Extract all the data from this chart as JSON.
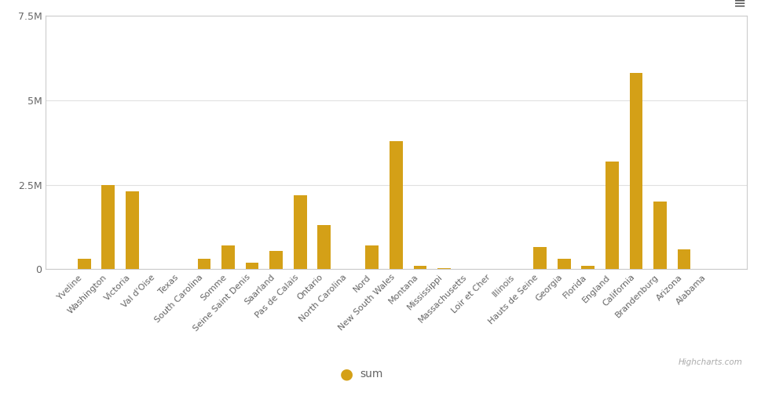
{
  "categories": [
    "Yveline",
    "Washington",
    "Victoria",
    "Val d’Oise",
    "Texas",
    "South Carolina",
    "Somme",
    "Seine Saint Denis",
    "Saarland",
    "Pas de Calais",
    "Ontario",
    "North Carolina",
    "Nord",
    "New South Wales",
    "Montana",
    "Mississippi",
    "Massachusetts",
    "Loir et Cher",
    "Illinois",
    "Hauts de Seine",
    "Georgia",
    "Florida",
    "England",
    "California",
    "Brandenburg",
    "Arizona",
    "Alabama"
  ],
  "values": [
    300000,
    2500000,
    2300000,
    0,
    0,
    300000,
    700000,
    200000,
    550000,
    2200000,
    1300000,
    0,
    700000,
    3800000,
    100000,
    30000,
    0,
    0,
    0,
    650000,
    300000,
    100000,
    3200000,
    5800000,
    2000000,
    600000,
    0
  ],
  "bar_color": "#d4a017",
  "legend_label": "sum",
  "ylim": [
    0,
    7500000
  ],
  "yticks": [
    0,
    2500000,
    5000000,
    7500000
  ],
  "ytick_labels": [
    "0",
    "2.5M",
    "5M",
    "7.5M"
  ],
  "grid_color": "#e0e0e0",
  "background_color": "#ffffff",
  "border_color": "#cccccc",
  "text_color": "#666666",
  "highcharts_label": "Highcharts.com",
  "toolbar_color": "#555555"
}
